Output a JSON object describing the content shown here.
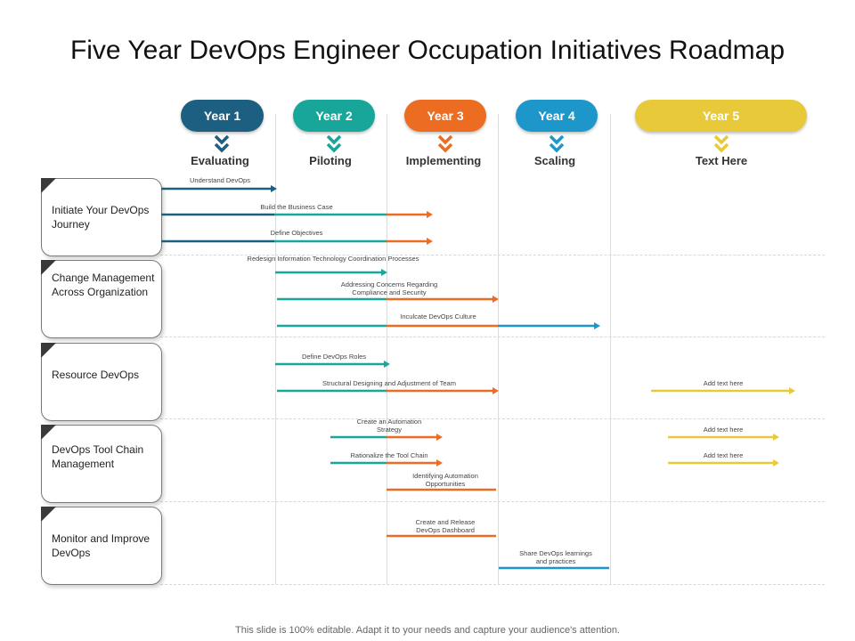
{
  "title": "Five Year DevOps Engineer Occupation Initiatives Roadmap",
  "footer": "This slide is 100% editable. Adapt it to your needs and capture your audience's attention.",
  "colors": {
    "navy": "#1d5f80",
    "teal": "#18a69a",
    "orange": "#ec6c22",
    "blue": "#1d97c9",
    "yellow": "#e8c93a"
  },
  "years": [
    {
      "label": "Year 1",
      "phase": "Evaluating",
      "color": "#1d5f80"
    },
    {
      "label": "Year 2",
      "phase": "Piloting",
      "color": "#18a69a"
    },
    {
      "label": "Year 3",
      "phase": "Implementing",
      "color": "#ec6c22"
    },
    {
      "label": "Year 4",
      "phase": "Scaling",
      "color": "#1d97c9"
    },
    {
      "label": "Year 5",
      "phase": "Text Here",
      "color": "#e8c93a"
    }
  ],
  "categories": [
    {
      "label": "Initiate Your DevOps Journey"
    },
    {
      "label": "Change Management Across Organization"
    },
    {
      "label": "Resource DevOps"
    },
    {
      "label": "DevOps Tool Chain Management"
    },
    {
      "label": "Monitor and Improve DevOps"
    }
  ],
  "tasks": [
    {
      "label": "Understand DevOps"
    },
    {
      "label": "Build the Business Case"
    },
    {
      "label": "Define Objectives"
    },
    {
      "label": "Redesign Information Technology Coordination Processes"
    },
    {
      "label": "Addressing Concerns Regarding Compliance and Security"
    },
    {
      "label": "Inculcate DevOps Culture"
    },
    {
      "label": "Define DevOps Roles"
    },
    {
      "label": "Structural Designing and Adjustment of Team"
    },
    {
      "label": "Add text here"
    },
    {
      "label": "Create an Automation Strategy"
    },
    {
      "label": "Add text here"
    },
    {
      "label": "Rationalize the Tool Chain"
    },
    {
      "label": "Add text here"
    },
    {
      "label": "Identifying Automation Opportunities"
    },
    {
      "label": "Create and Release DevOps Dashboard"
    },
    {
      "label": "Share DevOps learnings and practices"
    }
  ]
}
